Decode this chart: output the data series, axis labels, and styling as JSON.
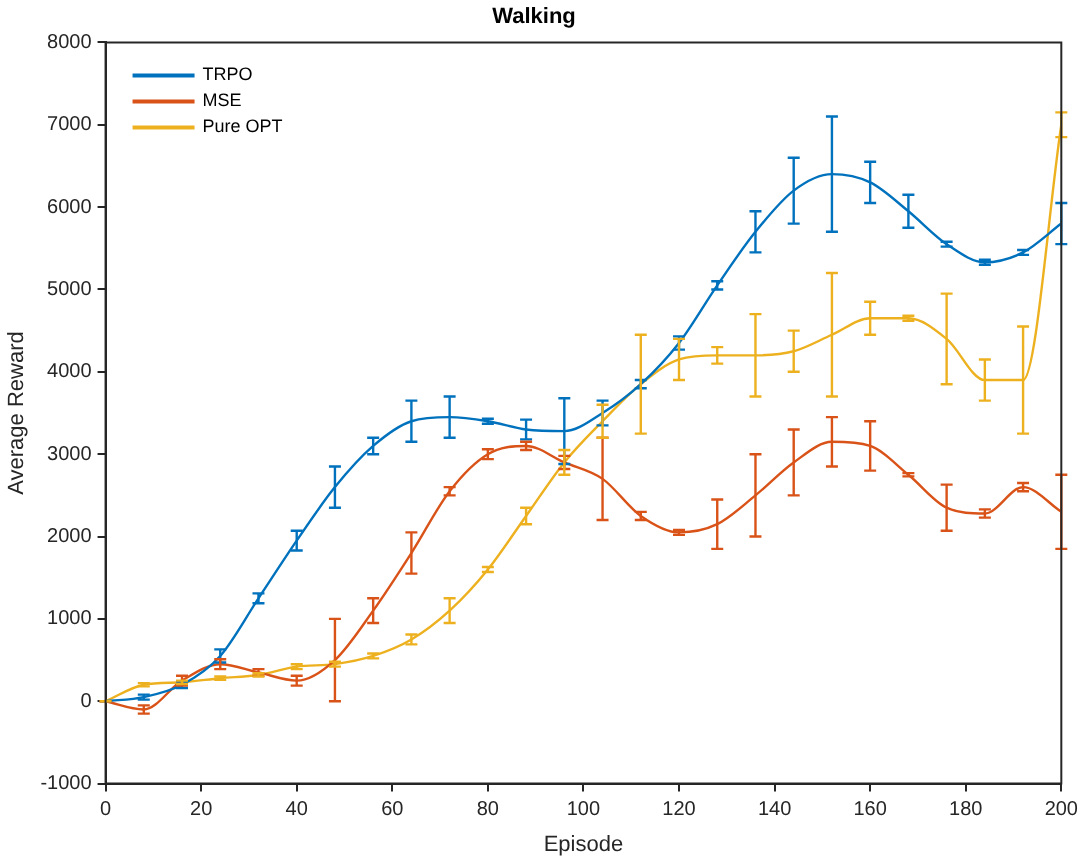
{
  "chart_data": {
    "type": "line",
    "title": "Walking",
    "xlabel": "Episode",
    "ylabel": "Average Reward",
    "x": [
      0,
      8,
      16,
      24,
      32,
      40,
      48,
      56,
      64,
      72,
      80,
      88,
      96,
      104,
      112,
      120,
      128,
      136,
      144,
      152,
      160,
      168,
      176,
      184,
      192,
      200
    ],
    "xlim": [
      0,
      200
    ],
    "xticks": [
      0,
      20,
      40,
      60,
      80,
      100,
      120,
      140,
      160,
      180,
      200
    ],
    "ylim": [
      -1000,
      8000
    ],
    "yticks": [
      -1000,
      0,
      1000,
      2000,
      3000,
      4000,
      5000,
      6000,
      7000,
      8000
    ],
    "grid": false,
    "legend": "top left",
    "marker": "none",
    "line_style": "solid",
    "series": [
      {
        "name": "TRPO",
        "color": "#0072bd",
        "values": [
          0,
          50,
          200,
          550,
          1250,
          1950,
          2600,
          3100,
          3400,
          3450,
          3400,
          3300,
          3280,
          3500,
          3850,
          4350,
          5050,
          5700,
          6200,
          6400,
          6300,
          5950,
          5550,
          5330,
          5450,
          5800
        ],
        "errors": [
          0,
          30,
          40,
          80,
          60,
          120,
          250,
          100,
          250,
          250,
          30,
          120,
          400,
          150,
          50,
          80,
          50,
          250,
          400,
          700,
          250,
          200,
          30,
          30,
          30,
          250
        ]
      },
      {
        "name": "MSE",
        "color": "#d95319",
        "values": [
          0,
          -100,
          250,
          450,
          350,
          250,
          500,
          1100,
          1800,
          2550,
          3000,
          3100,
          2900,
          2700,
          2250,
          2050,
          2150,
          2500,
          2900,
          3150,
          3100,
          2750,
          2350,
          2280,
          2600,
          2300
        ],
        "errors": [
          0,
          50,
          60,
          60,
          40,
          60,
          500,
          150,
          250,
          50,
          60,
          50,
          80,
          500,
          50,
          30,
          300,
          500,
          400,
          300,
          300,
          20,
          280,
          50,
          50,
          450
        ]
      },
      {
        "name": "Pure OPT",
        "color": "#edb120",
        "values": [
          0,
          200,
          230,
          280,
          320,
          420,
          450,
          550,
          750,
          1100,
          1600,
          2250,
          2900,
          3400,
          3850,
          4150,
          4200,
          4200,
          4250,
          4450,
          4650,
          4650,
          4400,
          3900,
          3900,
          7000
        ],
        "errors": [
          0,
          20,
          20,
          20,
          20,
          30,
          30,
          30,
          60,
          150,
          30,
          100,
          150,
          200,
          600,
          250,
          100,
          500,
          250,
          750,
          200,
          30,
          550,
          250,
          650,
          150
        ]
      }
    ]
  }
}
